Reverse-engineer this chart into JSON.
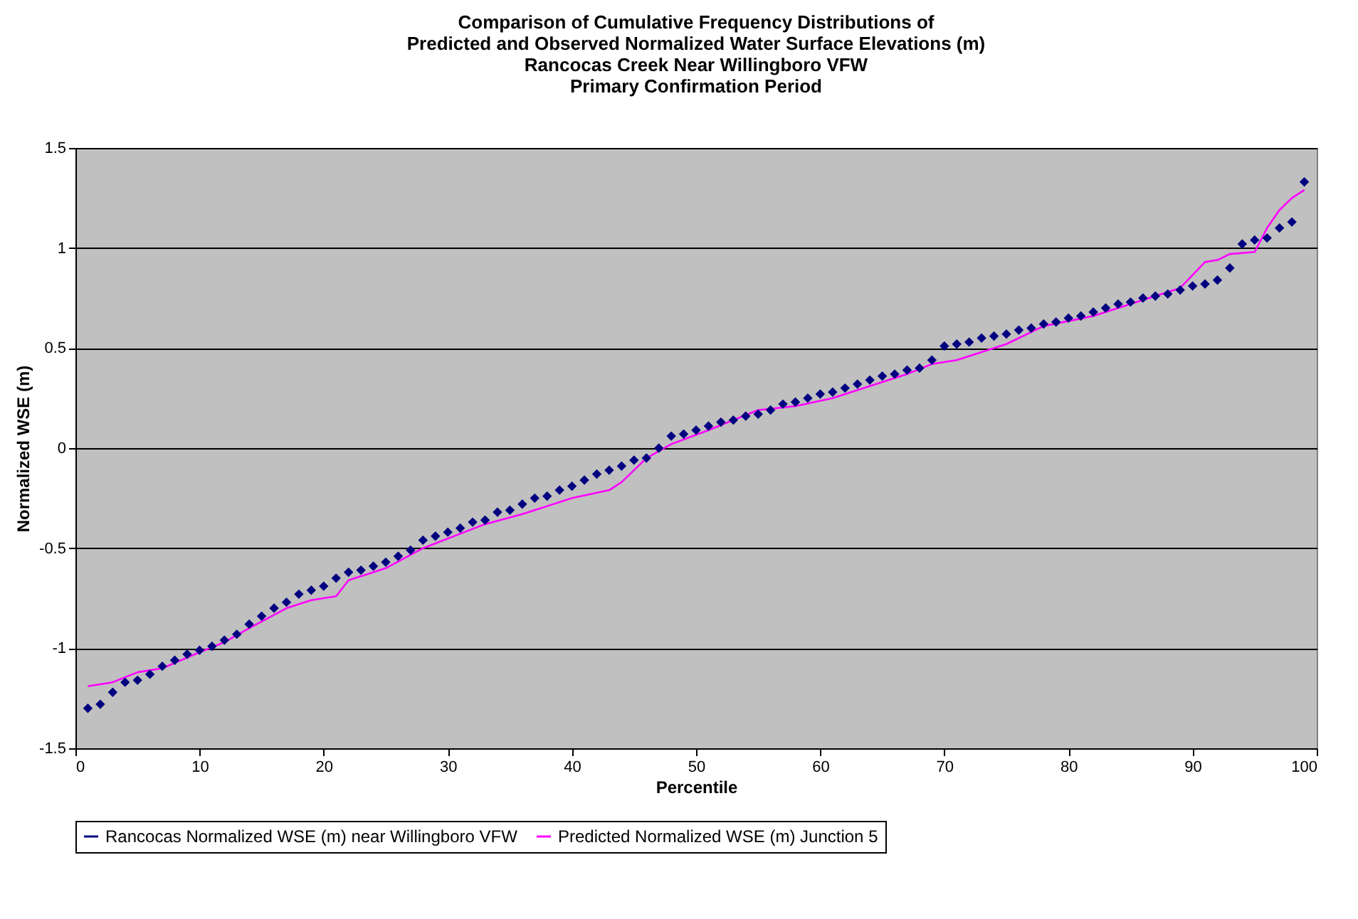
{
  "chart_data": {
    "type": "scatter",
    "title": [
      "Comparison of Cumulative Frequency Distributions of",
      "Predicted and Observed Normalized Water Surface Elevations (m)",
      "Rancocas Creek Near Willingboro VFW",
      "Primary Confirmation Period"
    ],
    "xlabel": "Percentile",
    "ylabel": "Normalized WSE (m)",
    "x": [
      1,
      2,
      3,
      4,
      5,
      6,
      7,
      8,
      9,
      10,
      11,
      12,
      13,
      14,
      15,
      16,
      17,
      18,
      19,
      20,
      21,
      22,
      23,
      24,
      25,
      26,
      27,
      28,
      29,
      30,
      31,
      32,
      33,
      34,
      35,
      36,
      37,
      38,
      39,
      40,
      41,
      42,
      43,
      44,
      45,
      46,
      47,
      48,
      49,
      50,
      51,
      52,
      53,
      54,
      55,
      56,
      57,
      58,
      59,
      60,
      61,
      62,
      63,
      64,
      65,
      66,
      67,
      68,
      69,
      70,
      71,
      72,
      73,
      74,
      75,
      76,
      77,
      78,
      79,
      80,
      81,
      82,
      83,
      84,
      85,
      86,
      87,
      88,
      89,
      90,
      91,
      92,
      93,
      94,
      95,
      96,
      97,
      98,
      99
    ],
    "series": [
      {
        "name": "Rancocas Normalized WSE (m) near Willingboro VFW",
        "color": "#000080",
        "marker": "diamond",
        "values": [
          -1.3,
          -1.28,
          -1.22,
          -1.17,
          -1.16,
          -1.13,
          -1.09,
          -1.06,
          -1.03,
          -1.01,
          -0.99,
          -0.96,
          -0.93,
          -0.88,
          -0.84,
          -0.8,
          -0.77,
          -0.73,
          -0.71,
          -0.69,
          -0.65,
          -0.62,
          -0.61,
          -0.59,
          -0.57,
          -0.54,
          -0.51,
          -0.46,
          -0.44,
          -0.42,
          -0.4,
          -0.37,
          -0.36,
          -0.32,
          -0.31,
          -0.28,
          -0.25,
          -0.24,
          -0.21,
          -0.19,
          -0.16,
          -0.13,
          -0.11,
          -0.09,
          -0.06,
          -0.05,
          0.0,
          0.06,
          0.07,
          0.09,
          0.11,
          0.13,
          0.14,
          0.16,
          0.17,
          0.19,
          0.22,
          0.23,
          0.25,
          0.27,
          0.28,
          0.3,
          0.32,
          0.34,
          0.36,
          0.37,
          0.39,
          0.4,
          0.44,
          0.51,
          0.52,
          0.53,
          0.55,
          0.56,
          0.57,
          0.59,
          0.6,
          0.62,
          0.63,
          0.65,
          0.66,
          0.68,
          0.7,
          0.72,
          0.73,
          0.75,
          0.76,
          0.77,
          0.79,
          0.81,
          0.82,
          0.84,
          0.9,
          1.02,
          1.04,
          1.05,
          1.1,
          1.13,
          1.33
        ]
      },
      {
        "name": "Predicted Normalized WSE (m) Junction 5",
        "type": "line",
        "color": "#ff00ff",
        "x": [
          1,
          3,
          5,
          7,
          10,
          12,
          14,
          17,
          19,
          21,
          22,
          25,
          28,
          33,
          36,
          40,
          43,
          44,
          46,
          48,
          51,
          53,
          55,
          58,
          61,
          64,
          67,
          69,
          71,
          73,
          75,
          78,
          82,
          86,
          89,
          91,
          92,
          93,
          95,
          96,
          97,
          98,
          99
        ],
        "values": [
          -1.19,
          -1.17,
          -1.12,
          -1.1,
          -1.02,
          -0.97,
          -0.9,
          -0.8,
          -0.76,
          -0.74,
          -0.66,
          -0.6,
          -0.5,
          -0.38,
          -0.33,
          -0.25,
          -0.21,
          -0.17,
          -0.05,
          0.02,
          0.09,
          0.14,
          0.19,
          0.21,
          0.25,
          0.31,
          0.37,
          0.42,
          0.44,
          0.48,
          0.52,
          0.61,
          0.66,
          0.74,
          0.8,
          0.93,
          0.94,
          0.97,
          0.98,
          1.1,
          1.19,
          1.25,
          1.29
        ]
      }
    ],
    "xlim": [
      0,
      100
    ],
    "xticks": [
      0,
      10,
      20,
      30,
      40,
      50,
      60,
      70,
      80,
      90,
      100
    ],
    "ylim": [
      -1.5,
      1.5
    ],
    "yticks": [
      -1.5,
      -1,
      -0.5,
      0,
      0.5,
      1,
      1.5
    ],
    "grid": "y",
    "legend": "bottom"
  }
}
